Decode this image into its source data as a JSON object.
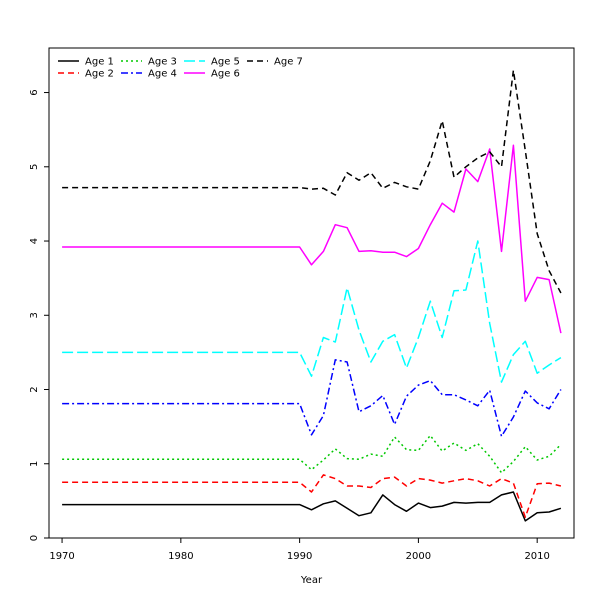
{
  "chart_data": {
    "type": "line",
    "title": "",
    "xlabel": "Year",
    "ylabel": "",
    "xlim": [
      1968.9,
      2013.1
    ],
    "ylim": [
      0,
      6.6
    ],
    "x_ticks": [
      1970,
      1980,
      1990,
      2000,
      2010
    ],
    "y_ticks": [
      0,
      1,
      2,
      3,
      4,
      5,
      6
    ],
    "grid": false,
    "legend_position": "top-left",
    "x": [
      1970,
      1971,
      1972,
      1973,
      1974,
      1975,
      1976,
      1977,
      1978,
      1979,
      1980,
      1981,
      1982,
      1983,
      1984,
      1985,
      1986,
      1987,
      1988,
      1989,
      1990,
      1991,
      1992,
      1993,
      1994,
      1995,
      1996,
      1997,
      1998,
      1999,
      2000,
      2001,
      2002,
      2003,
      2004,
      2005,
      2006,
      2007,
      2008,
      2009,
      2010,
      2011,
      2012
    ],
    "series": [
      {
        "name": "Age 1",
        "color": "#000000",
        "dash": "solid",
        "values": [
          0.45,
          0.45,
          0.45,
          0.45,
          0.45,
          0.45,
          0.45,
          0.45,
          0.45,
          0.45,
          0.45,
          0.45,
          0.45,
          0.45,
          0.45,
          0.45,
          0.45,
          0.45,
          0.45,
          0.45,
          0.45,
          0.38,
          0.46,
          0.5,
          0.4,
          0.3,
          0.34,
          0.58,
          0.45,
          0.36,
          0.47,
          0.41,
          0.43,
          0.48,
          0.47,
          0.48,
          0.48,
          0.58,
          0.62,
          0.23,
          0.34,
          0.35,
          0.4
        ]
      },
      {
        "name": "Age 2",
        "color": "#ff0000",
        "dash": "dashed",
        "values": [
          0.75,
          0.75,
          0.75,
          0.75,
          0.75,
          0.75,
          0.75,
          0.75,
          0.75,
          0.75,
          0.75,
          0.75,
          0.75,
          0.75,
          0.75,
          0.75,
          0.75,
          0.75,
          0.75,
          0.75,
          0.75,
          0.62,
          0.85,
          0.8,
          0.7,
          0.7,
          0.68,
          0.8,
          0.82,
          0.7,
          0.8,
          0.78,
          0.74,
          0.77,
          0.8,
          0.77,
          0.7,
          0.8,
          0.74,
          0.28,
          0.73,
          0.74,
          0.7
        ]
      },
      {
        "name": "Age 3",
        "color": "#00c800",
        "dash": "dotted",
        "values": [
          1.06,
          1.06,
          1.06,
          1.06,
          1.06,
          1.06,
          1.06,
          1.06,
          1.06,
          1.06,
          1.06,
          1.06,
          1.06,
          1.06,
          1.06,
          1.06,
          1.06,
          1.06,
          1.06,
          1.06,
          1.06,
          0.92,
          1.05,
          1.2,
          1.07,
          1.06,
          1.13,
          1.1,
          1.36,
          1.19,
          1.18,
          1.38,
          1.17,
          1.28,
          1.18,
          1.27,
          1.1,
          0.88,
          1.03,
          1.23,
          1.05,
          1.1,
          1.26
        ]
      },
      {
        "name": "Age 4",
        "color": "#0000ff",
        "dash": "dashdot",
        "values": [
          1.81,
          1.81,
          1.81,
          1.81,
          1.81,
          1.81,
          1.81,
          1.81,
          1.81,
          1.81,
          1.81,
          1.81,
          1.81,
          1.81,
          1.81,
          1.81,
          1.81,
          1.81,
          1.81,
          1.81,
          1.81,
          1.39,
          1.65,
          2.4,
          2.37,
          1.7,
          1.78,
          1.92,
          1.53,
          1.91,
          2.06,
          2.12,
          1.93,
          1.93,
          1.86,
          1.78,
          1.99,
          1.37,
          1.63,
          1.98,
          1.82,
          1.74,
          2.0
        ]
      },
      {
        "name": "Age 5",
        "color": "#00ffff",
        "dash": "longdash",
        "values": [
          2.5,
          2.5,
          2.5,
          2.5,
          2.5,
          2.5,
          2.5,
          2.5,
          2.5,
          2.5,
          2.5,
          2.5,
          2.5,
          2.5,
          2.5,
          2.5,
          2.5,
          2.5,
          2.5,
          2.5,
          2.5,
          2.18,
          2.7,
          2.64,
          3.37,
          2.8,
          2.37,
          2.65,
          2.74,
          2.29,
          2.7,
          3.19,
          2.7,
          3.33,
          3.34,
          4.0,
          2.89,
          2.1,
          2.47,
          2.65,
          2.22,
          2.33,
          2.43
        ]
      },
      {
        "name": "Age 6",
        "color": "#ff00ff",
        "dash": "solid",
        "values": [
          3.92,
          3.92,
          3.92,
          3.92,
          3.92,
          3.92,
          3.92,
          3.92,
          3.92,
          3.92,
          3.92,
          3.92,
          3.92,
          3.92,
          3.92,
          3.92,
          3.92,
          3.92,
          3.92,
          3.92,
          3.92,
          3.68,
          3.86,
          4.22,
          4.18,
          3.86,
          3.87,
          3.85,
          3.85,
          3.79,
          3.9,
          4.22,
          4.51,
          4.39,
          4.97,
          4.8,
          5.24,
          3.86,
          5.29,
          3.19,
          3.51,
          3.48,
          2.76
        ]
      },
      {
        "name": "Age 7",
        "color": "#000000",
        "dash": "dashed",
        "values": [
          4.72,
          4.72,
          4.72,
          4.72,
          4.72,
          4.72,
          4.72,
          4.72,
          4.72,
          4.72,
          4.72,
          4.72,
          4.72,
          4.72,
          4.72,
          4.72,
          4.72,
          4.72,
          4.72,
          4.72,
          4.72,
          4.7,
          4.71,
          4.62,
          4.92,
          4.82,
          4.92,
          4.71,
          4.79,
          4.73,
          4.7,
          5.08,
          5.62,
          4.86,
          5.0,
          5.12,
          5.2,
          5.0,
          6.3,
          5.22,
          4.1,
          3.6,
          3.3
        ]
      }
    ]
  }
}
